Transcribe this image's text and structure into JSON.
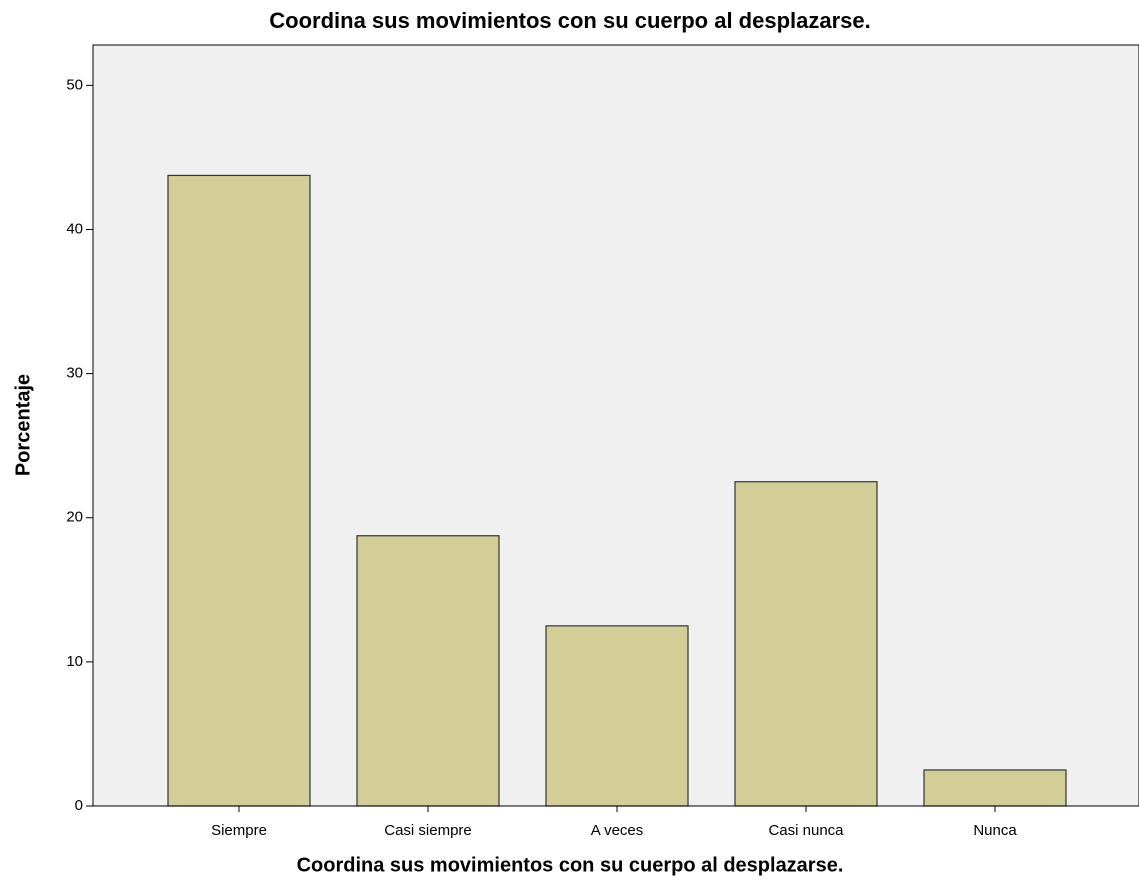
{
  "chart_data": {
    "type": "bar",
    "title": "Coordina sus movimientos con su cuerpo al desplazarse.",
    "x_label": "Coordina sus movimientos con su cuerpo al desplazarse.",
    "y_label": "Porcentaje",
    "categories": [
      "Siempre",
      "Casi siempre",
      "A veces",
      "Casi nunca",
      "Nunca"
    ],
    "values": [
      43.75,
      18.75,
      12.5,
      22.5,
      2.5
    ],
    "color": "#d3ce97",
    "ylim": [
      0,
      52.8
    ],
    "yticks": [
      0,
      10,
      20,
      30,
      40,
      50
    ],
    "grid": false
  }
}
